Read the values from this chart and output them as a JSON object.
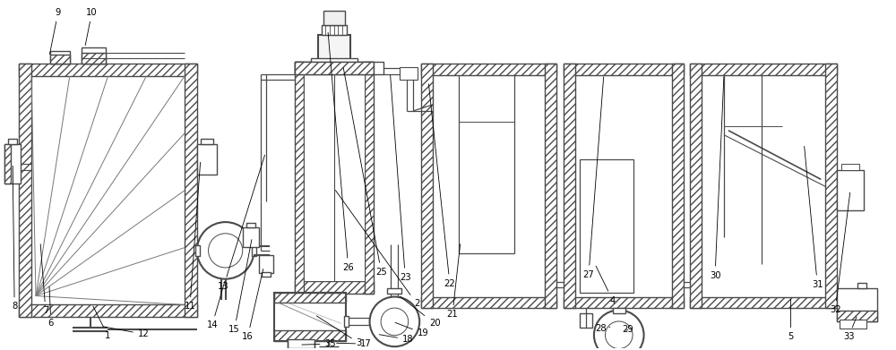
{
  "bg_color": "#ffffff",
  "lc": "#4a4a4a",
  "lw": 1.0,
  "tlw": 1.5,
  "fig_w": 10.0,
  "fig_h": 3.91,
  "xmax": 10.0,
  "ymax": 3.91
}
